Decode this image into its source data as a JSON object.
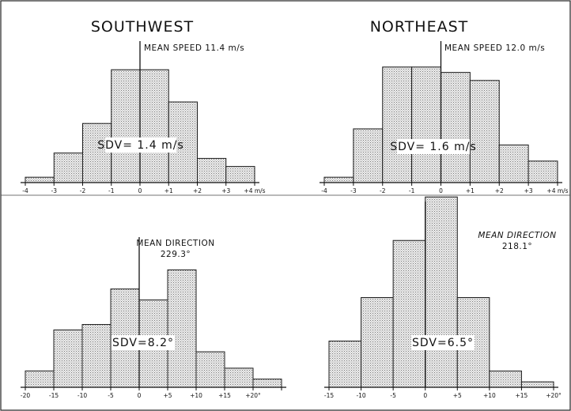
{
  "headings": {
    "left": "SOUTHWEST",
    "right": "NORTHEAST"
  },
  "chart_data": [
    {
      "type": "bar",
      "panel": "southwest-speed",
      "categories": [
        "-4 to -3",
        "-3 to -2",
        "-2 to -1",
        "-1 to 0",
        "0 to +1",
        "+1 to +2",
        "+2 to +3",
        "+3 to +4"
      ],
      "values": [
        2,
        11,
        22,
        42,
        42,
        30,
        9,
        6
      ],
      "ylim": [
        0,
        50
      ],
      "xlim": [
        -4,
        4
      ],
      "x_edges": [
        -4,
        -3,
        -2,
        -1,
        0,
        1,
        2,
        3,
        4
      ],
      "tick_labels": [
        "-4",
        "-3",
        "-2",
        "-1",
        "0",
        "+1",
        "+2",
        "+3",
        "+4 m/s"
      ],
      "mean_label": "MEAN SPEED 11.4 m/s",
      "mean_position": 0,
      "sdv_label": "SDV= 1.4 m/s"
    },
    {
      "type": "bar",
      "panel": "northeast-speed",
      "categories": [
        "-4 to -3",
        "-3 to -2",
        "-2 to -1",
        "-1 to 0",
        "0 to +1",
        "+1 to +2",
        "+2 to +3",
        "+3 to +4"
      ],
      "values": [
        2,
        20,
        43,
        43,
        41,
        38,
        14,
        8
      ],
      "ylim": [
        0,
        50
      ],
      "xlim": [
        -4,
        4
      ],
      "x_edges": [
        -4,
        -3,
        -2,
        -1,
        0,
        1,
        2,
        3,
        4
      ],
      "tick_labels": [
        "-4",
        "-3",
        "-2",
        "-1",
        "0",
        "+1",
        "+2",
        "+3",
        "+4 m/s"
      ],
      "mean_label": "MEAN SPEED 12.0 m/s",
      "mean_position": 0,
      "sdv_label": "SDV= 1.6 m/s"
    },
    {
      "type": "bar",
      "panel": "southwest-direction",
      "categories": [
        "-20 to -15",
        "-15 to -10",
        "-10 to -5",
        "-5 to 0",
        "0 to +5",
        "+5 to +10",
        "+10 to +15",
        "+15 to +20",
        "+20 to +25"
      ],
      "values": [
        6,
        21,
        23,
        36,
        32,
        43,
        13,
        7,
        3
      ],
      "ylim": [
        0,
        55
      ],
      "xlim": [
        -20,
        25
      ],
      "x_edges": [
        -20,
        -15,
        -10,
        -5,
        0,
        5,
        10,
        15,
        20,
        25
      ],
      "tick_labels": [
        "-20",
        "-15",
        "-10",
        "-5",
        "0",
        "+5",
        "+10",
        "+15",
        "+20°"
      ],
      "mean_label_1": "MEAN DIRECTION",
      "mean_label_2": "229.3°",
      "mean_position": 0,
      "sdv_label": "SDV=8.2°"
    },
    {
      "type": "bar",
      "panel": "northeast-direction",
      "categories": [
        "-15 to -10",
        "-10 to -5",
        "-5 to 0",
        "0 to +5",
        "+5 to +10",
        "+10 to +15",
        "+15 to +20"
      ],
      "values": [
        17,
        33,
        54,
        70,
        33,
        6,
        2
      ],
      "ylim": [
        0,
        75
      ],
      "xlim": [
        -15,
        20
      ],
      "x_edges": [
        -15,
        -10,
        -5,
        0,
        5,
        10,
        15,
        20
      ],
      "tick_labels": [
        "-15",
        "-10",
        "-5",
        "0",
        "+5",
        "+10",
        "+15",
        "+20°"
      ],
      "mean_label_1": "MEAN DIRECTION",
      "mean_label_2": "218.1°",
      "mean_position": 0,
      "sdv_label": "SDV=6.5°"
    }
  ]
}
